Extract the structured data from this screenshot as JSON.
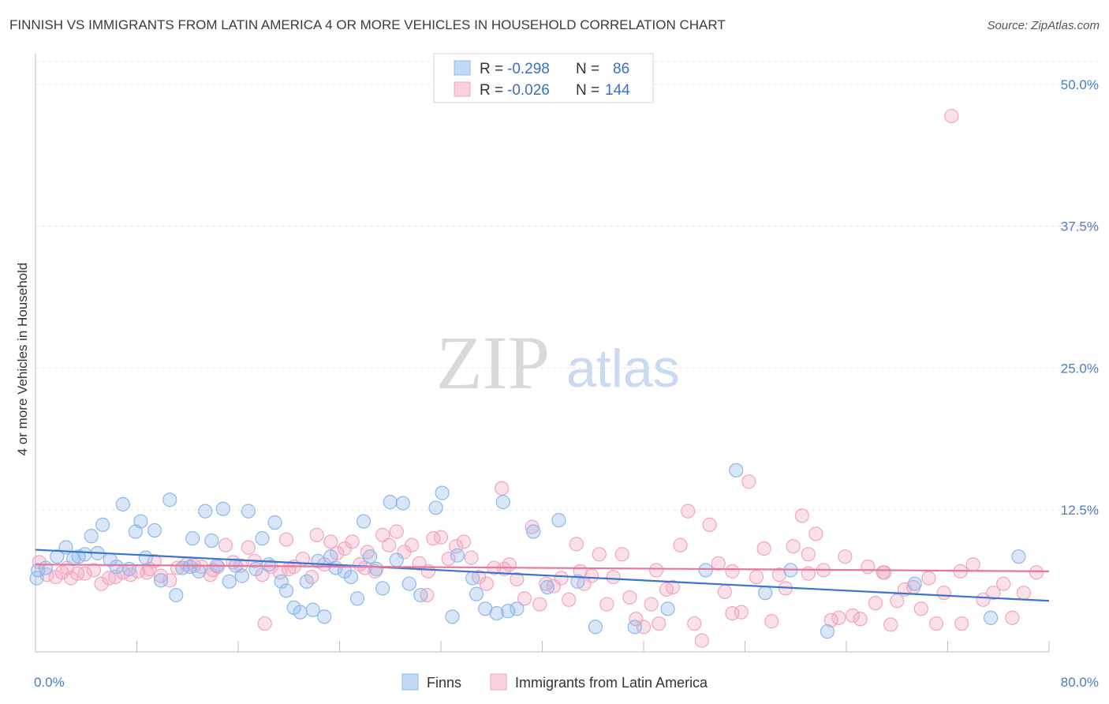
{
  "header": {
    "title": "FINNISH VS IMMIGRANTS FROM LATIN AMERICA 4 OR MORE VEHICLES IN HOUSEHOLD CORRELATION CHART",
    "source": "Source: ZipAtlas.com"
  },
  "watermark": {
    "zip": "ZIP",
    "atlas": "atlas"
  },
  "legend": {
    "rows": [
      {
        "r_label": "R =",
        "r_value": "-0.298",
        "n_label": "N =",
        "n_value": "86",
        "color": "#8fb8ea"
      },
      {
        "r_label": "R =",
        "r_value": "-0.026",
        "n_label": "N =",
        "n_value": "144",
        "color": "#f2a6bf"
      }
    ]
  },
  "chart_data": {
    "type": "scatter",
    "title": "FINNISH VS IMMIGRANTS FROM LATIN AMERICA 4 OR MORE VEHICLES IN HOUSEHOLD CORRELATION CHART",
    "xlabel": "",
    "ylabel": "4 or more Vehicles in Household",
    "xlim": [
      0,
      80
    ],
    "ylim": [
      0,
      52
    ],
    "x_tick_labels": [
      {
        "value": 0,
        "label": "0.0%"
      },
      {
        "value": 80,
        "label": "80.0%"
      }
    ],
    "y_tick_labels": [
      {
        "value": 12.5,
        "label": "12.5%"
      },
      {
        "value": 25.0,
        "label": "25.0%"
      },
      {
        "value": 37.5,
        "label": "37.5%"
      },
      {
        "value": 50.0,
        "label": "50.0%"
      }
    ],
    "x_minor_ticks": [
      0,
      8,
      16,
      24,
      32,
      40,
      48,
      56,
      64,
      72,
      80
    ],
    "grid": true,
    "legend_position": "top-center",
    "series": [
      {
        "name": "Finns",
        "color": "#8fb8ea",
        "line_color": "#3a74d0",
        "trend": {
          "x": [
            0,
            80
          ],
          "y": [
            9.0,
            4.5
          ]
        },
        "points": [
          [
            0.2,
            7.2
          ],
          [
            0.8,
            7.4
          ],
          [
            1.7,
            8.4
          ],
          [
            2.4,
            9.2
          ],
          [
            3.0,
            8.2
          ],
          [
            3.4,
            8.4
          ],
          [
            3.9,
            8.6
          ],
          [
            4.4,
            10.2
          ],
          [
            4.9,
            8.7
          ],
          [
            5.3,
            11.2
          ],
          [
            5.9,
            8.1
          ],
          [
            6.4,
            7.5
          ],
          [
            6.9,
            13.0
          ],
          [
            7.4,
            7.3
          ],
          [
            7.9,
            10.6
          ],
          [
            8.3,
            11.5
          ],
          [
            8.7,
            8.3
          ],
          [
            9.4,
            10.7
          ],
          [
            9.9,
            6.3
          ],
          [
            10.6,
            13.4
          ],
          [
            11.1,
            5.0
          ],
          [
            11.6,
            7.4
          ],
          [
            12.2,
            7.5
          ],
          [
            12.4,
            10.0
          ],
          [
            12.9,
            7.1
          ],
          [
            13.4,
            12.4
          ],
          [
            13.9,
            9.8
          ],
          [
            14.3,
            7.6
          ],
          [
            14.8,
            12.6
          ],
          [
            15.3,
            6.2
          ],
          [
            15.8,
            7.6
          ],
          [
            16.3,
            6.7
          ],
          [
            16.8,
            12.4
          ],
          [
            17.4,
            7.3
          ],
          [
            17.9,
            10.0
          ],
          [
            18.4,
            7.7
          ],
          [
            18.9,
            11.4
          ],
          [
            19.4,
            6.2
          ],
          [
            19.8,
            5.4
          ],
          [
            20.4,
            3.9
          ],
          [
            20.9,
            3.5
          ],
          [
            21.4,
            6.2
          ],
          [
            21.9,
            3.7
          ],
          [
            22.3,
            8.0
          ],
          [
            22.8,
            3.1
          ],
          [
            23.3,
            8.4
          ],
          [
            23.7,
            7.4
          ],
          [
            24.4,
            7.1
          ],
          [
            24.9,
            6.6
          ],
          [
            25.4,
            4.7
          ],
          [
            25.9,
            11.5
          ],
          [
            26.4,
            8.4
          ],
          [
            26.9,
            7.3
          ],
          [
            27.4,
            5.6
          ],
          [
            28.0,
            13.2
          ],
          [
            28.5,
            8.1
          ],
          [
            29.0,
            13.1
          ],
          [
            29.5,
            6.0
          ],
          [
            30.4,
            5.0
          ],
          [
            31.6,
            12.7
          ],
          [
            32.1,
            14.0
          ],
          [
            32.9,
            3.1
          ],
          [
            33.3,
            8.5
          ],
          [
            34.5,
            6.5
          ],
          [
            34.8,
            5.1
          ],
          [
            35.5,
            3.8
          ],
          [
            36.4,
            3.4
          ],
          [
            36.9,
            13.2
          ],
          [
            37.3,
            3.6
          ],
          [
            38.0,
            3.8
          ],
          [
            39.3,
            10.6
          ],
          [
            40.4,
            5.7
          ],
          [
            41.3,
            11.6
          ],
          [
            42.8,
            6.2
          ],
          [
            44.2,
            2.2
          ],
          [
            47.3,
            2.2
          ],
          [
            49.9,
            3.8
          ],
          [
            52.9,
            7.2
          ],
          [
            55.3,
            16.0
          ],
          [
            57.6,
            5.2
          ],
          [
            59.6,
            7.2
          ],
          [
            62.5,
            1.8
          ],
          [
            69.4,
            6.0
          ],
          [
            75.4,
            3.0
          ],
          [
            77.6,
            8.4
          ],
          [
            0.1,
            6.5
          ]
        ]
      },
      {
        "name": "Immigrants from Latin America",
        "color": "#f2a6bf",
        "line_color": "#e8769c",
        "trend": {
          "x": [
            0,
            80
          ],
          "y": [
            7.7,
            7.1
          ]
        },
        "points": [
          [
            0.3,
            7.9
          ],
          [
            0.9,
            6.8
          ],
          [
            1.6,
            6.6
          ],
          [
            2.1,
            7.0
          ],
          [
            2.8,
            6.5
          ],
          [
            3.3,
            6.9
          ],
          [
            3.9,
            6.9
          ],
          [
            4.6,
            7.2
          ],
          [
            5.2,
            6.0
          ],
          [
            5.8,
            6.5
          ],
          [
            6.3,
            6.6
          ],
          [
            6.9,
            7.0
          ],
          [
            7.5,
            6.8
          ],
          [
            8.1,
            7.1
          ],
          [
            8.8,
            7.0
          ],
          [
            9.4,
            8.0
          ],
          [
            9.9,
            6.7
          ],
          [
            10.6,
            6.3
          ],
          [
            11.2,
            7.4
          ],
          [
            11.9,
            7.7
          ],
          [
            12.5,
            7.6
          ],
          [
            13.1,
            7.5
          ],
          [
            13.8,
            6.8
          ],
          [
            14.4,
            7.5
          ],
          [
            15.0,
            9.4
          ],
          [
            15.6,
            7.9
          ],
          [
            16.2,
            7.6
          ],
          [
            16.8,
            9.2
          ],
          [
            17.3,
            8.0
          ],
          [
            17.9,
            6.8
          ],
          [
            18.1,
            2.5
          ],
          [
            18.6,
            7.5
          ],
          [
            19.3,
            7.0
          ],
          [
            19.8,
            9.9
          ],
          [
            20.4,
            7.5
          ],
          [
            21.1,
            8.2
          ],
          [
            21.8,
            6.6
          ],
          [
            22.2,
            10.3
          ],
          [
            22.8,
            7.7
          ],
          [
            23.3,
            9.7
          ],
          [
            23.8,
            8.7
          ],
          [
            24.4,
            9.1
          ],
          [
            25.0,
            9.7
          ],
          [
            25.6,
            7.7
          ],
          [
            26.2,
            8.8
          ],
          [
            26.8,
            7.1
          ],
          [
            27.4,
            10.3
          ],
          [
            27.9,
            9.4
          ],
          [
            28.5,
            10.6
          ],
          [
            29.1,
            8.8
          ],
          [
            29.7,
            9.4
          ],
          [
            30.3,
            7.8
          ],
          [
            30.9,
            5.0
          ],
          [
            31.4,
            10.0
          ],
          [
            32.0,
            10.1
          ],
          [
            32.6,
            8.2
          ],
          [
            33.2,
            9.3
          ],
          [
            33.8,
            9.7
          ],
          [
            34.4,
            8.3
          ],
          [
            35.0,
            6.6
          ],
          [
            35.6,
            6.0
          ],
          [
            36.2,
            7.4
          ],
          [
            36.8,
            14.4
          ],
          [
            37.4,
            7.7
          ],
          [
            38.0,
            6.4
          ],
          [
            38.6,
            4.7
          ],
          [
            39.2,
            11.0
          ],
          [
            39.8,
            4.2
          ],
          [
            40.3,
            6.0
          ],
          [
            40.9,
            5.8
          ],
          [
            41.5,
            6.5
          ],
          [
            42.1,
            4.6
          ],
          [
            42.7,
            9.5
          ],
          [
            43.3,
            6.0
          ],
          [
            43.9,
            6.7
          ],
          [
            44.5,
            8.6
          ],
          [
            45.1,
            4.2
          ],
          [
            45.6,
            6.6
          ],
          [
            46.3,
            8.6
          ],
          [
            46.9,
            4.8
          ],
          [
            47.4,
            2.9
          ],
          [
            48.0,
            2.2
          ],
          [
            48.6,
            4.2
          ],
          [
            49.2,
            2.5
          ],
          [
            49.8,
            5.5
          ],
          [
            50.3,
            5.7
          ],
          [
            50.9,
            9.4
          ],
          [
            51.5,
            12.4
          ],
          [
            52.0,
            2.5
          ],
          [
            52.6,
            1.0
          ],
          [
            53.2,
            11.2
          ],
          [
            53.9,
            7.8
          ],
          [
            54.4,
            5.3
          ],
          [
            55.0,
            3.4
          ],
          [
            55.7,
            3.5
          ],
          [
            56.3,
            15.0
          ],
          [
            56.9,
            6.6
          ],
          [
            57.5,
            9.1
          ],
          [
            58.1,
            2.7
          ],
          [
            58.7,
            6.8
          ],
          [
            59.2,
            5.6
          ],
          [
            59.8,
            9.3
          ],
          [
            60.5,
            12.0
          ],
          [
            61.0,
            8.6
          ],
          [
            61.6,
            10.4
          ],
          [
            62.2,
            7.2
          ],
          [
            62.8,
            2.8
          ],
          [
            63.4,
            3.0
          ],
          [
            63.9,
            8.4
          ],
          [
            64.5,
            3.2
          ],
          [
            65.1,
            2.9
          ],
          [
            65.7,
            7.5
          ],
          [
            66.3,
            4.3
          ],
          [
            66.9,
            7.0
          ],
          [
            67.5,
            2.4
          ],
          [
            68.0,
            4.5
          ],
          [
            68.6,
            5.5
          ],
          [
            69.3,
            5.7
          ],
          [
            69.9,
            3.8
          ],
          [
            70.5,
            6.5
          ],
          [
            71.1,
            2.5
          ],
          [
            71.7,
            5.2
          ],
          [
            72.3,
            47.2
          ],
          [
            73.1,
            2.5
          ],
          [
            74.0,
            7.7
          ],
          [
            74.8,
            4.6
          ],
          [
            75.6,
            5.2
          ],
          [
            76.4,
            6.0
          ],
          [
            77.1,
            3.0
          ],
          [
            78.0,
            5.2
          ],
          [
            2.5,
            7.4
          ],
          [
            9.0,
            7.3
          ],
          [
            14.0,
            7.2
          ],
          [
            20.0,
            7.3
          ],
          [
            26.0,
            7.4
          ],
          [
            31.0,
            7.1
          ],
          [
            37.0,
            7.3
          ],
          [
            43.0,
            7.1
          ],
          [
            49.0,
            7.2
          ],
          [
            55.0,
            7.1
          ],
          [
            61.0,
            6.9
          ],
          [
            67.0,
            7.0
          ],
          [
            73.0,
            7.1
          ],
          [
            79.0,
            7.0
          ]
        ]
      }
    ]
  }
}
